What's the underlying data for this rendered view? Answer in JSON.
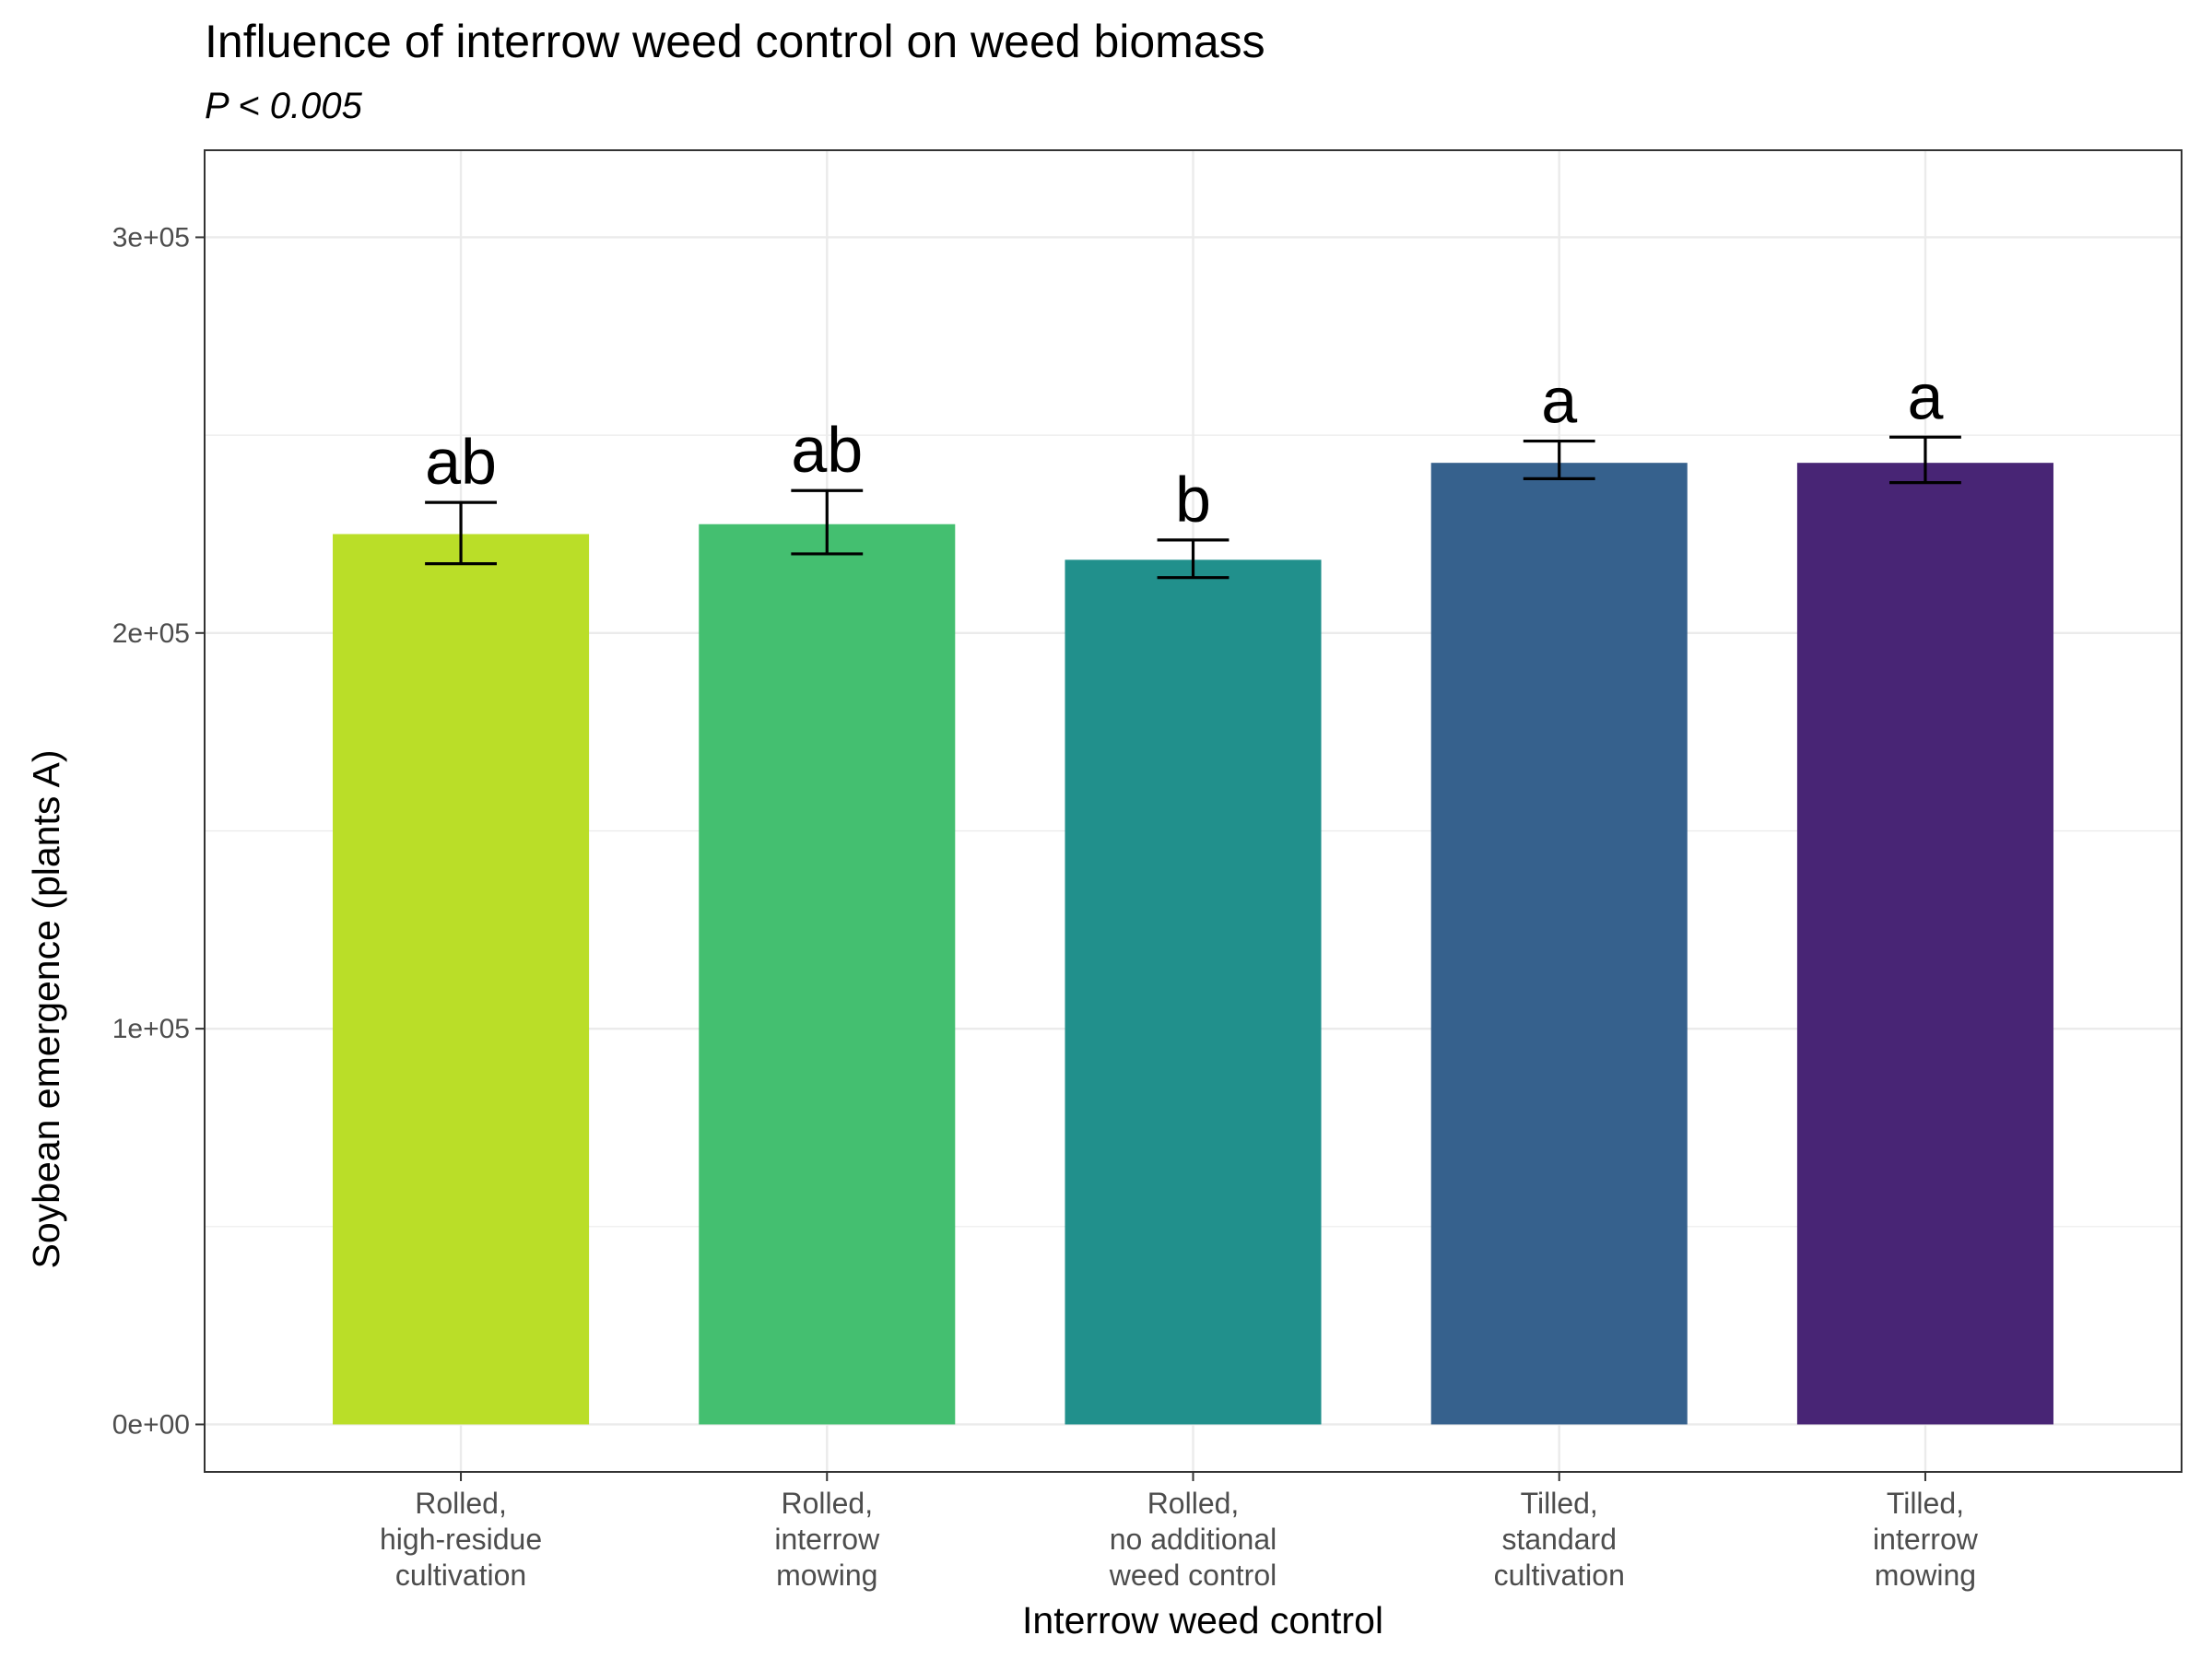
{
  "chart_data": {
    "type": "bar",
    "title": "Influence of interrow weed control on weed biomass",
    "subtitle": "P < 0.005",
    "xlabel": "Interrow weed control",
    "ylabel": "Soybean emergence (plants A)",
    "ylim": [
      -12000,
      322000
    ],
    "yticks": [
      0,
      100000,
      200000,
      300000
    ],
    "ytick_labels": [
      "0e+00",
      "1e+05",
      "2e+05",
      "3e+05"
    ],
    "grid": true,
    "legend": "none",
    "categories": [
      [
        "Rolled,",
        "high-residue",
        "cultivation"
      ],
      [
        "Rolled,",
        "interrow",
        "mowing"
      ],
      [
        "Rolled,",
        "no additional",
        "weed control"
      ],
      [
        "Tilled,",
        "standard",
        "cultivation"
      ],
      [
        "Tilled,",
        "interrow",
        "mowing"
      ]
    ],
    "values": [
      225000,
      227500,
      218500,
      243000,
      243000
    ],
    "error_low": [
      217500,
      220000,
      214000,
      239000,
      238000
    ],
    "error_high": [
      233000,
      236000,
      223500,
      248500,
      249500
    ],
    "group_letters": [
      "ab",
      "ab",
      "b",
      "a",
      "a"
    ],
    "colors": [
      "#BADE28",
      "#44BF70",
      "#21908C",
      "#36618D",
      "#482575"
    ]
  }
}
